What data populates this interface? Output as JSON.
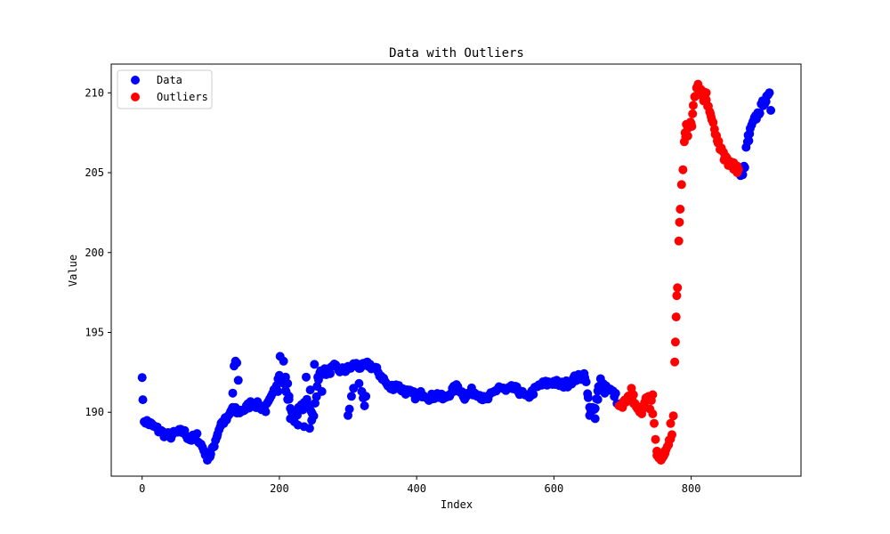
{
  "chart_data": {
    "type": "scatter",
    "title": "Data with Outliers",
    "xlabel": "Index",
    "ylabel": "Value",
    "xlim": [
      -45,
      960
    ],
    "ylim": [
      186.0,
      211.8
    ],
    "xticks": [
      0,
      200,
      400,
      600,
      800
    ],
    "yticks": [
      190,
      195,
      200,
      205,
      210
    ],
    "legend": "upper-left",
    "series": [
      {
        "name": "Data",
        "color": "#0000ff",
        "anchors": [
          [
            0,
            192.4
          ],
          [
            1,
            190.6
          ],
          [
            3,
            189.5
          ],
          [
            10,
            189.3
          ],
          [
            20,
            189.0
          ],
          [
            30,
            188.7
          ],
          [
            40,
            188.5
          ],
          [
            50,
            188.7
          ],
          [
            60,
            188.8
          ],
          [
            70,
            188.3
          ],
          [
            80,
            188.5
          ],
          [
            88,
            187.8
          ],
          [
            95,
            187.2
          ],
          [
            100,
            187.3
          ],
          [
            105,
            188.0
          ],
          [
            110,
            188.7
          ],
          [
            115,
            189.3
          ],
          [
            125,
            189.6
          ],
          [
            132,
            190.3
          ],
          [
            138,
            190.0
          ],
          [
            150,
            190.2
          ],
          [
            160,
            190.6
          ],
          [
            170,
            190.4
          ],
          [
            180,
            190.2
          ],
          [
            190,
            191.0
          ],
          [
            200,
            192.5
          ],
          [
            205,
            192.0
          ],
          [
            210,
            191.2
          ],
          [
            220,
            189.8
          ],
          [
            230,
            190.2
          ],
          [
            240,
            190.6
          ],
          [
            250,
            189.9
          ],
          [
            255,
            191.5
          ],
          [
            260,
            192.6
          ],
          [
            270,
            192.5
          ],
          [
            280,
            192.8
          ],
          [
            290,
            192.6
          ],
          [
            300,
            192.7
          ],
          [
            310,
            193.0
          ],
          [
            320,
            192.8
          ],
          [
            330,
            193.0
          ],
          [
            340,
            192.7
          ],
          [
            350,
            192.2
          ],
          [
            360,
            191.5
          ],
          [
            370,
            191.7
          ],
          [
            380,
            191.4
          ],
          [
            390,
            191.2
          ],
          [
            400,
            191.0
          ],
          [
            410,
            191.2
          ],
          [
            420,
            190.9
          ],
          [
            430,
            191.1
          ],
          [
            440,
            190.8
          ],
          [
            450,
            191.3
          ],
          [
            460,
            191.6
          ],
          [
            470,
            191.0
          ],
          [
            480,
            191.3
          ],
          [
            490,
            191.2
          ],
          [
            500,
            190.7
          ],
          [
            510,
            191.1
          ],
          [
            520,
            191.6
          ],
          [
            530,
            191.3
          ],
          [
            540,
            191.5
          ],
          [
            550,
            191.3
          ],
          [
            560,
            190.9
          ],
          [
            570,
            191.3
          ],
          [
            580,
            191.7
          ],
          [
            590,
            191.8
          ],
          [
            600,
            191.9
          ],
          [
            610,
            191.7
          ],
          [
            620,
            191.8
          ],
          [
            630,
            192.1
          ],
          [
            640,
            192.2
          ],
          [
            645,
            192.4
          ],
          [
            650,
            190.8
          ],
          [
            655,
            190.0
          ],
          [
            660,
            190.2
          ],
          [
            665,
            191.5
          ],
          [
            670,
            191.8
          ],
          [
            680,
            191.5
          ],
          [
            690,
            191.0
          ],
          [
            694,
            190.5
          ],
          [
            870,
            204.9
          ],
          [
            875,
            204.8
          ],
          [
            878,
            205.5
          ],
          [
            880,
            206.4
          ],
          [
            883,
            207.2
          ],
          [
            886,
            207.6
          ],
          [
            890,
            208.1
          ],
          [
            895,
            208.5
          ],
          [
            900,
            208.9
          ],
          [
            905,
            209.4
          ],
          [
            910,
            209.6
          ],
          [
            914,
            209.8
          ],
          [
            916,
            208.9
          ]
        ],
        "extra_points": [
          [
            132,
            191.2
          ],
          [
            134,
            192.9
          ],
          [
            136,
            193.2
          ],
          [
            138,
            193.1
          ],
          [
            140,
            192.0
          ],
          [
            195,
            191.5
          ],
          [
            198,
            191.3
          ],
          [
            201,
            193.5
          ],
          [
            206,
            193.2
          ],
          [
            209,
            192.2
          ],
          [
            212,
            191.8
          ],
          [
            214,
            191.0
          ],
          [
            216,
            189.6
          ],
          [
            222,
            189.4
          ],
          [
            227,
            189.2
          ],
          [
            236,
            189.1
          ],
          [
            244,
            189.0
          ],
          [
            247,
            189.5
          ],
          [
            245,
            191.4
          ],
          [
            239,
            192.2
          ],
          [
            251,
            193.0
          ],
          [
            256,
            192.2
          ],
          [
            262,
            191.3
          ],
          [
            300,
            189.8
          ],
          [
            302,
            190.2
          ],
          [
            305,
            191.0
          ],
          [
            308,
            191.5
          ],
          [
            316,
            191.8
          ],
          [
            320,
            191.3
          ],
          [
            322,
            190.9
          ],
          [
            324,
            190.4
          ],
          [
            326,
            191.0
          ],
          [
            652,
            189.8
          ],
          [
            656,
            190.3
          ],
          [
            660,
            189.6
          ],
          [
            664,
            190.8
          ],
          [
            668,
            192.1
          ],
          [
            674,
            191.2
          ],
          [
            884,
            207.0
          ]
        ]
      },
      {
        "name": "Outliers",
        "color": "#ff0000",
        "anchors": [
          [
            695,
            190.5
          ],
          [
            705,
            190.8
          ],
          [
            712,
            191.2
          ],
          [
            718,
            190.5
          ],
          [
            725,
            190.0
          ],
          [
            732,
            190.4
          ],
          [
            738,
            190.9
          ],
          [
            742,
            190.6
          ],
          [
            746,
            189.5
          ],
          [
            748,
            188.2
          ],
          [
            750,
            187.5
          ],
          [
            753,
            187.1
          ],
          [
            758,
            187.3
          ],
          [
            763,
            187.7
          ],
          [
            768,
            188.2
          ],
          [
            772,
            188.8
          ],
          [
            774,
            190.0
          ],
          [
            776,
            193.0
          ],
          [
            778,
            195.8
          ],
          [
            780,
            198.0
          ],
          [
            782,
            200.6
          ],
          [
            784,
            202.8
          ],
          [
            786,
            204.3
          ],
          [
            788,
            205.0
          ],
          [
            790,
            206.8
          ],
          [
            793,
            207.8
          ],
          [
            797,
            208.0
          ],
          [
            800,
            208.3
          ],
          [
            803,
            209.1
          ],
          [
            806,
            209.9
          ],
          [
            810,
            210.4
          ],
          [
            815,
            210.2
          ],
          [
            820,
            209.8
          ],
          [
            825,
            209.0
          ],
          [
            830,
            208.2
          ],
          [
            835,
            207.5
          ],
          [
            840,
            206.8
          ],
          [
            845,
            206.3
          ],
          [
            850,
            205.9
          ],
          [
            855,
            205.6
          ],
          [
            860,
            205.6
          ],
          [
            865,
            205.3
          ],
          [
            869,
            205.2
          ]
        ],
        "extra_points": [
          [
            700,
            190.3
          ],
          [
            708,
            191.0
          ],
          [
            713,
            191.5
          ],
          [
            716,
            191.1
          ],
          [
            722,
            190.2
          ],
          [
            728,
            189.9
          ],
          [
            734,
            190.9
          ],
          [
            740,
            190.2
          ],
          [
            744,
            191.1
          ],
          [
            750,
            187.3
          ],
          [
            756,
            187.0
          ],
          [
            762,
            187.6
          ],
          [
            770,
            189.3
          ],
          [
            777,
            194.4
          ],
          [
            779,
            197.3
          ],
          [
            783,
            201.9
          ],
          [
            791,
            207.5
          ],
          [
            795,
            207.3
          ],
          [
            801,
            207.9
          ],
          [
            808,
            210.3
          ],
          [
            812,
            209.9
          ],
          [
            818,
            209.5
          ],
          [
            822,
            210.0
          ],
          [
            828,
            208.7
          ],
          [
            838,
            207.0
          ],
          [
            848,
            205.8
          ],
          [
            857,
            205.7
          ],
          [
            862,
            205.2
          ],
          [
            867,
            205.0
          ]
        ]
      }
    ]
  }
}
